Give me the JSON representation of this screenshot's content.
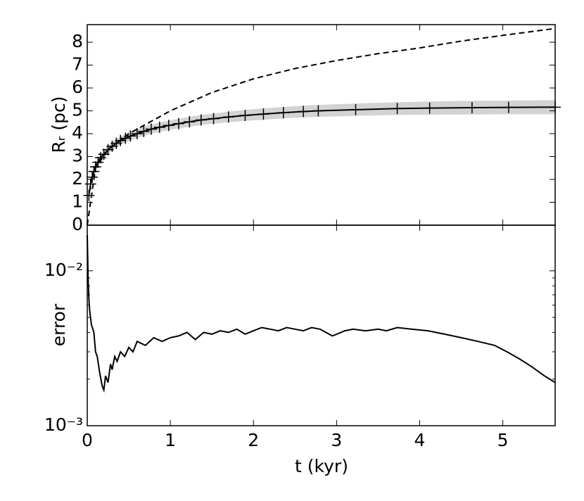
{
  "chart_data": [
    {
      "type": "line",
      "ylabel": "Rᵣ (pc)",
      "xlim": [
        0,
        5.63
      ],
      "xticks": [
        0,
        1,
        2,
        3,
        4,
        5
      ],
      "ylim": [
        0,
        8.77
      ],
      "yticks": [
        0,
        1,
        2,
        3,
        4,
        5,
        6,
        7,
        8
      ],
      "series": [
        {
          "color": "#000000",
          "band_color": "#d3d3d3",
          "marker": "+",
          "linestyle": "solid",
          "x": [
            0.02,
            0.04,
            0.06,
            0.08,
            0.1,
            0.13,
            0.16,
            0.2,
            0.25,
            0.3,
            0.35,
            0.4,
            0.46,
            0.52,
            0.6,
            0.68,
            0.77,
            0.87,
            0.98,
            1.1,
            1.23,
            1.37,
            1.52,
            1.7,
            1.9,
            2.12,
            2.36,
            2.6,
            2.78,
            3.23,
            3.73,
            4.12,
            4.63,
            5.07,
            5.63
          ],
          "values": [
            1.3,
            1.8,
            2.1,
            2.35,
            2.55,
            2.75,
            2.95,
            3.1,
            3.3,
            3.45,
            3.58,
            3.7,
            3.8,
            3.9,
            4.0,
            4.1,
            4.2,
            4.28,
            4.36,
            4.44,
            4.52,
            4.6,
            4.66,
            4.73,
            4.8,
            4.86,
            4.92,
            4.97,
            5.0,
            5.05,
            5.1,
            5.12,
            5.14,
            5.15,
            5.16
          ],
          "errors": [
            0.1,
            0.12,
            0.13,
            0.14,
            0.15,
            0.15,
            0.15,
            0.16,
            0.16,
            0.17,
            0.17,
            0.18,
            0.18,
            0.19,
            0.19,
            0.2,
            0.2,
            0.2,
            0.21,
            0.21,
            0.22,
            0.22,
            0.22,
            0.23,
            0.24,
            0.25,
            0.25,
            0.26,
            0.26,
            0.27,
            0.28,
            0.29,
            0.3,
            0.3,
            0.31
          ]
        },
        {
          "color": "#000000",
          "linestyle": "dashed",
          "x": [
            0,
            0.1,
            0.25,
            0.5,
            0.75,
            1,
            1.5,
            2,
            2.5,
            3,
            3.5,
            4,
            4.5,
            5,
            5.63
          ],
          "values": [
            0,
            2.5,
            3.3,
            4.0,
            4.5,
            5.0,
            5.8,
            6.4,
            6.85,
            7.2,
            7.5,
            7.75,
            8.05,
            8.3,
            8.6
          ]
        }
      ]
    },
    {
      "type": "line",
      "ylabel": "error",
      "xlabel": "t (kyr)",
      "yscale": "log",
      "color": "#000000",
      "xlim": [
        0,
        5.63
      ],
      "xticks": [
        0,
        1,
        2,
        3,
        4,
        5
      ],
      "ylim": [
        0.001,
        0.0197
      ],
      "yticks": [
        {
          "value": 0.001,
          "label": "10⁻³"
        },
        {
          "value": 0.01,
          "label": "10⁻²"
        }
      ],
      "yminorticks": [
        0.002,
        0.003,
        0.004,
        0.005,
        0.006,
        0.007,
        0.008,
        0.009
      ],
      "x": [
        0,
        0.01,
        0.02,
        0.03,
        0.05,
        0.08,
        0.1,
        0.12,
        0.15,
        0.18,
        0.2,
        0.22,
        0.25,
        0.28,
        0.3,
        0.33,
        0.36,
        0.4,
        0.45,
        0.5,
        0.55,
        0.6,
        0.7,
        0.8,
        0.9,
        1.0,
        1.1,
        1.2,
        1.3,
        1.4,
        1.5,
        1.6,
        1.7,
        1.8,
        1.9,
        2.0,
        2.1,
        2.2,
        2.3,
        2.4,
        2.5,
        2.6,
        2.7,
        2.8,
        2.95,
        3.1,
        3.2,
        3.35,
        3.5,
        3.6,
        3.73,
        3.9,
        4.1,
        4.3,
        4.5,
        4.7,
        4.9,
        5.05,
        5.2,
        5.35,
        5.5,
        5.63
      ],
      "values": [
        0.017,
        0.009,
        0.0065,
        0.0055,
        0.0045,
        0.004,
        0.003,
        0.0028,
        0.0022,
        0.0018,
        0.0017,
        0.0021,
        0.0019,
        0.0025,
        0.0023,
        0.0028,
        0.0026,
        0.003,
        0.0028,
        0.0032,
        0.003,
        0.0035,
        0.0033,
        0.0037,
        0.0035,
        0.0037,
        0.0038,
        0.004,
        0.0036,
        0.004,
        0.0039,
        0.0041,
        0.004,
        0.0042,
        0.0039,
        0.0041,
        0.0043,
        0.0042,
        0.0041,
        0.0043,
        0.0042,
        0.0041,
        0.0043,
        0.0042,
        0.0038,
        0.0041,
        0.0042,
        0.0041,
        0.0042,
        0.0041,
        0.0043,
        0.0042,
        0.0041,
        0.0039,
        0.0037,
        0.0035,
        0.0033,
        0.003,
        0.0027,
        0.0024,
        0.0021,
        0.0019
      ]
    }
  ]
}
